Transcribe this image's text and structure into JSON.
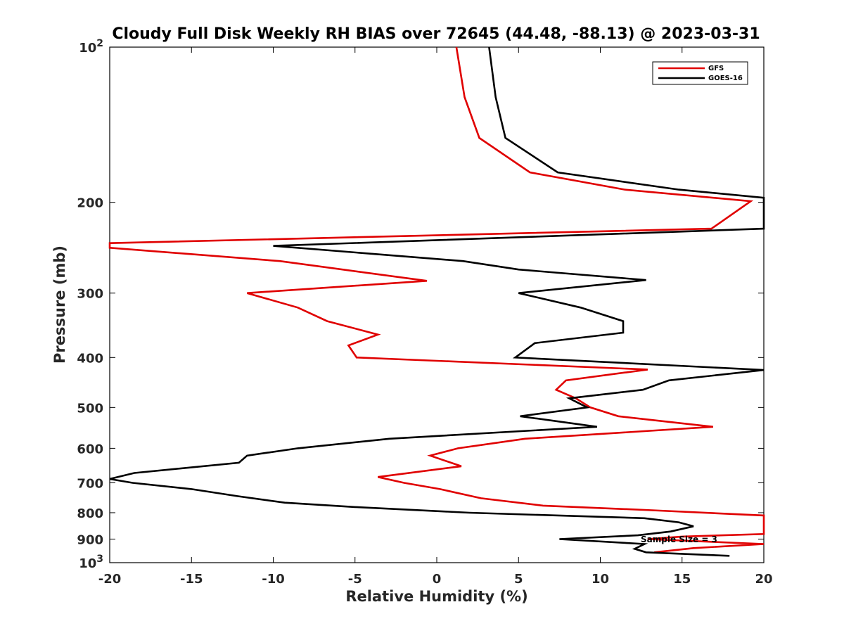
{
  "chart_data": {
    "type": "line",
    "title": "Cloudy Full Disk Weekly RH BIAS over 72645 (44.48, -88.13) @ 2023-03-31",
    "xlabel": "Relative Humidity (%)",
    "ylabel": "Pressure (mb)",
    "xlim": [
      -20,
      20
    ],
    "ylim": [
      100,
      1000
    ],
    "y_scale": "log",
    "y_reversed": true,
    "grid": false,
    "legend_position": "top-right",
    "x_ticks": [
      "-20",
      "-15",
      "-10",
      "-5",
      "0",
      "5",
      "10",
      "15",
      "20"
    ],
    "y_ticks": [
      {
        "value": 100,
        "base": "10",
        "exp": "2"
      },
      {
        "value": 200,
        "label": "200"
      },
      {
        "value": 300,
        "label": "300"
      },
      {
        "value": 400,
        "label": "400"
      },
      {
        "value": 500,
        "label": "500"
      },
      {
        "value": 600,
        "label": "600"
      },
      {
        "value": 700,
        "label": "700"
      },
      {
        "value": 800,
        "label": "800"
      },
      {
        "value": 900,
        "label": "900"
      },
      {
        "value": 1000,
        "base": "10",
        "exp": "3"
      }
    ],
    "annotation": "Sample Size = 3",
    "series": [
      {
        "name": "GFS",
        "color": "#e00000",
        "points": [
          [
            1.2,
            100
          ],
          [
            1.7,
            125
          ],
          [
            2.6,
            150
          ],
          [
            5.7,
            175
          ],
          [
            11.5,
            189
          ],
          [
            19.2,
            199
          ],
          [
            16.8,
            225
          ],
          [
            -20,
            240
          ],
          [
            -20,
            245
          ],
          [
            -9.6,
            260
          ],
          [
            -0.6,
            284
          ],
          [
            -11.6,
            300
          ],
          [
            -8.5,
            320
          ],
          [
            -6.7,
            340
          ],
          [
            -3.6,
            361
          ],
          [
            -5.4,
            379
          ],
          [
            -4.9,
            400
          ],
          [
            12.9,
            422
          ],
          [
            7.9,
            443
          ],
          [
            7.3,
            462
          ],
          [
            8.5,
            480
          ],
          [
            9.4,
            500
          ],
          [
            11.1,
            520
          ],
          [
            16.9,
            545
          ],
          [
            5.4,
            575
          ],
          [
            1.3,
            600
          ],
          [
            -0.4,
            620
          ],
          [
            1.5,
            650
          ],
          [
            -3.6,
            682
          ],
          [
            -2.0,
            700
          ],
          [
            0.2,
            720
          ],
          [
            2.7,
            750
          ],
          [
            6.5,
            775
          ],
          [
            12.7,
            790
          ],
          [
            20,
            810
          ],
          [
            20,
            880
          ],
          [
            15.0,
            890
          ],
          [
            12.9,
            900
          ],
          [
            20,
            920
          ],
          [
            15.7,
            937
          ],
          [
            13.3,
            955
          ]
        ]
      },
      {
        "name": "GOES-16",
        "color": "#000000",
        "points": [
          [
            3.2,
            100
          ],
          [
            3.6,
            125
          ],
          [
            4.2,
            150
          ],
          [
            7.4,
            175
          ],
          [
            14.8,
            189
          ],
          [
            20,
            196
          ],
          [
            20,
            225
          ],
          [
            -10.0,
            243
          ],
          [
            1.6,
            260
          ],
          [
            5.0,
            270
          ],
          [
            12.8,
            283
          ],
          [
            5.0,
            300
          ],
          [
            8.8,
            320
          ],
          [
            11.4,
            340
          ],
          [
            11.4,
            358
          ],
          [
            6.0,
            375
          ],
          [
            4.8,
            400
          ],
          [
            20,
            423
          ],
          [
            14.2,
            443
          ],
          [
            12.6,
            462
          ],
          [
            8.1,
            480
          ],
          [
            9.2,
            500
          ],
          [
            5.1,
            520
          ],
          [
            9.8,
            545
          ],
          [
            -2.9,
            575
          ],
          [
            -8.5,
            600
          ],
          [
            -11.6,
            620
          ],
          [
            -12.1,
            640
          ],
          [
            -18.5,
            670
          ],
          [
            -20,
            688
          ],
          [
            -18.6,
            700
          ],
          [
            -15.0,
            720
          ],
          [
            -12.2,
            743
          ],
          [
            -9.3,
            765
          ],
          [
            -5.0,
            780
          ],
          [
            2.0,
            800
          ],
          [
            12.7,
            820
          ],
          [
            14.8,
            835
          ],
          [
            15.7,
            850
          ],
          [
            14.3,
            870
          ],
          [
            12.3,
            885
          ],
          [
            7.5,
            900
          ],
          [
            12.7,
            920
          ],
          [
            12.1,
            940
          ],
          [
            12.8,
            955
          ],
          [
            17.9,
            970
          ]
        ]
      }
    ]
  }
}
